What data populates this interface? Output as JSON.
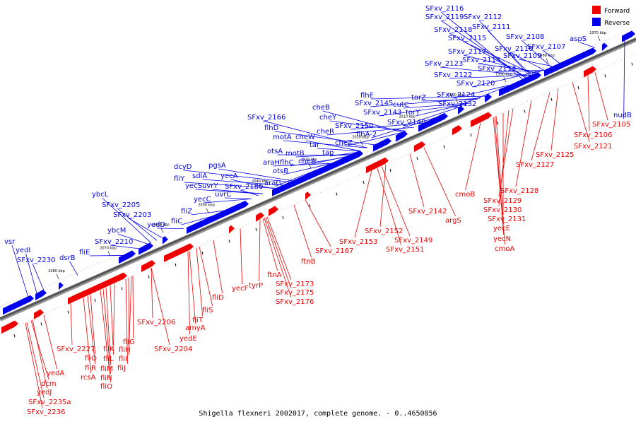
{
  "caption": "Shigella flexneri 2002017, complete genome. - 0..4650856",
  "legend": [
    {
      "label": "Forward",
      "color": "#ee0000"
    },
    {
      "label": "Reverse",
      "color": "#0000ee"
    }
  ],
  "colors": {
    "forward": "#ee0000",
    "reverse": "#0000ee",
    "backbone": "#555555"
  },
  "ticks": [
    "1970 kbp",
    "1980 kbp",
    "1990 kbp",
    "2000 kbp",
    "2010 kbp",
    "2020 kbp",
    "2030 kbp",
    "2040 kbp",
    "2050 kbp",
    "2060 kbp",
    "2070 kbp",
    "2080 kbp"
  ],
  "reverse_labels": [
    "SFxv_2116",
    "SFxv_2119",
    "SFxv_2112",
    "SFxv_2111",
    "SFxv_2118",
    "SFxv_2115",
    "SFxv_2108",
    "SFxv_2110",
    "SFxv_2107",
    "aspS",
    "SFxv_2117",
    "SFxv_2114",
    "SFxv_2109",
    "SFxv_2123",
    "SFxv_2113",
    "SFxv_2122",
    "SFxv_2120",
    "SFxv_2124",
    "SFxv_2132",
    "flhE",
    "SFxv_2145",
    "cutC",
    "torZ",
    "SFxv_2143",
    "torY",
    "SFxv_2140",
    "cheB",
    "cheY",
    "SFxv_2150",
    "cheR",
    "flhA-2",
    "cheZ",
    "SFxv_2166",
    "flhD",
    "motA",
    "cheW",
    "tar",
    "otsA",
    "motB",
    "tap",
    "flhC",
    "cheA",
    "araH",
    "otsB",
    "araG",
    "dcyD",
    "pgsA",
    "sdiA",
    "fliY",
    "yecA",
    "uvrY",
    "yecS",
    "SFxv_2180",
    "yecC",
    "uvrC",
    "fliZ",
    "fliC",
    "ybcL",
    "SFxv_2205",
    "SFxv_2203",
    "yedD",
    "ybcM",
    "SFxv_2210",
    "fliE",
    "vsr",
    "yedI",
    "dsrB",
    "SFxv_2230",
    "nudB"
  ],
  "forward_labels": [
    "SFxv_2105",
    "SFxv_2106",
    "SFxv_2121",
    "SFxv_2125",
    "SFxv_2127",
    "SFxv_2128",
    "SFxv_2129",
    "cmoB",
    "SFxv_2130",
    "SFxv_2131",
    "yecE",
    "yecN",
    "cmoA",
    "argS",
    "SFxv_2142",
    "SFxv_2152",
    "SFxv_2153",
    "SFxv_2149",
    "SFxv_2151",
    "SFxv_2167",
    "ftnB",
    "ftnA",
    "SFxv_2173",
    "SFxv_2175",
    "SFxv_2176",
    "tyrP",
    "yecF",
    "fliD",
    "fliS",
    "fliT",
    "amyA",
    "yedE",
    "SFxv_2206",
    "SFxv_2204",
    "fliG",
    "fliH",
    "fliI",
    "fliJ",
    "fliK",
    "fliL",
    "fliM",
    "fliN",
    "fliO",
    "fliQ",
    "fliR",
    "rcsA",
    "SFxv_2227",
    "yedA",
    "yedJ",
    "dcm",
    "SFxv_2235a",
    "SFxv_2236"
  ]
}
